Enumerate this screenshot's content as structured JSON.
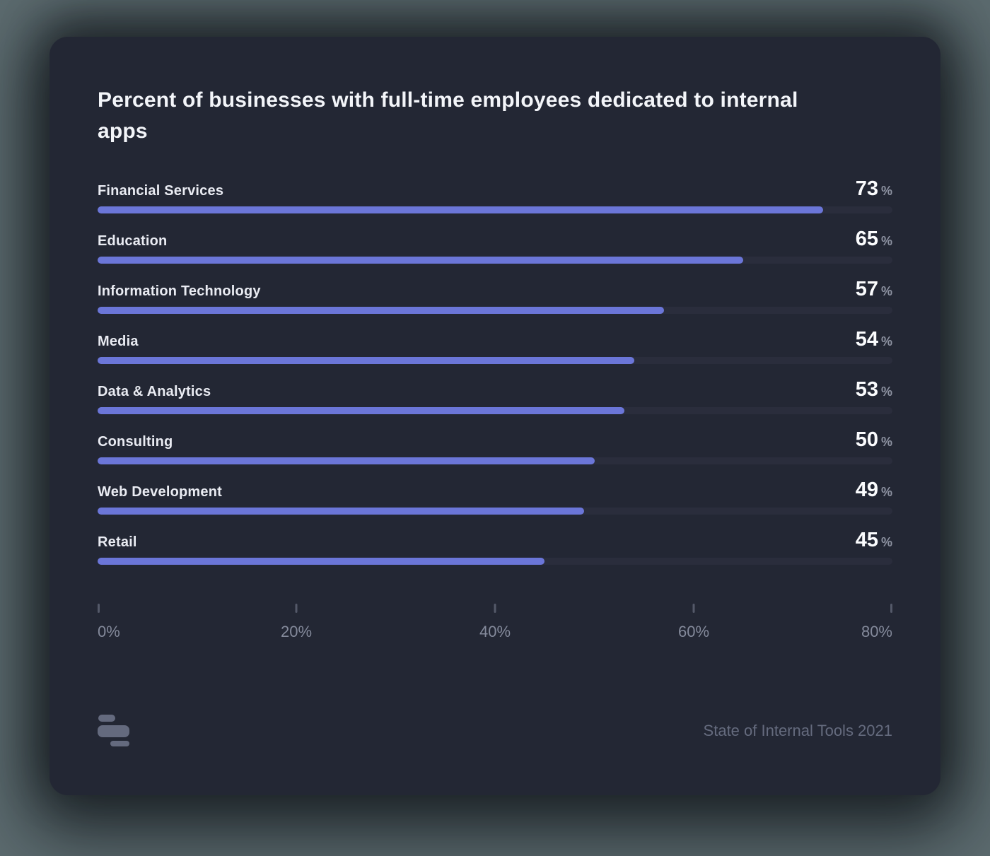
{
  "window": {
    "background_color": "#5c6b6f"
  },
  "card": {
    "background_color": "#232734"
  },
  "chart_data": {
    "type": "bar",
    "orientation": "horizontal",
    "title": "Percent of businesses with full-time employees dedicated to internal apps",
    "categories": [
      "Financial Services",
      "Education",
      "Information Technology",
      "Media",
      "Data & Analytics",
      "Consulting",
      "Web Development",
      "Retail"
    ],
    "values": [
      73,
      65,
      57,
      54,
      53,
      50,
      49,
      45
    ],
    "value_suffix": "%",
    "xlabel": "",
    "ylabel": "",
    "xlim": [
      0,
      80
    ],
    "x_tick_values": [
      0,
      20,
      40,
      60,
      80
    ],
    "x_tick_labels": [
      "0%",
      "20%",
      "40%",
      "60%",
      "80%"
    ],
    "grid": false,
    "legend": "none",
    "bar_color": "#6b76d8",
    "track_color": "#2a2d3c",
    "value_color": "#fbfcfe",
    "suffix_color": "#8e93a2"
  },
  "footer": {
    "logo": "retool-blocks-logo",
    "logo_color": "#646a7e",
    "source": "State of Internal Tools 2021"
  }
}
